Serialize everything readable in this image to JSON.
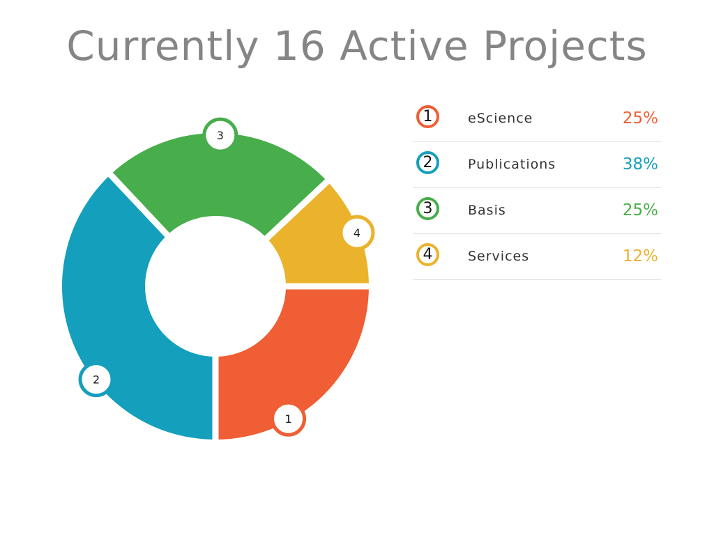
{
  "title": "Currently 16 Active Projects",
  "chart_data": {
    "type": "pie",
    "title": "Currently 16 Active Projects",
    "categories": [
      "eScience",
      "Publications",
      "Basis",
      "Services"
    ],
    "markers": [
      "1",
      "2",
      "3",
      "4"
    ],
    "values": [
      25,
      38,
      25,
      12
    ],
    "value_labels": [
      "25%",
      "38%",
      "25%",
      "12%"
    ],
    "colors": [
      "#ef5e34",
      "#149fbc",
      "#48ad4b",
      "#ebb22b"
    ],
    "style": "donut",
    "legend_position": "right"
  }
}
